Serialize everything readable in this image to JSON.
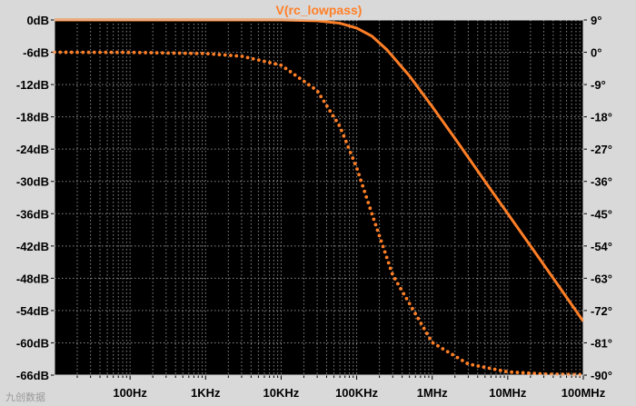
{
  "watermark": "九创数据",
  "chart_data": {
    "type": "line",
    "title": "V(rc_lowpass)",
    "xlabel": "",
    "ylabel": "",
    "x_scale": "log",
    "xlim": [
      10,
      100000000
    ],
    "ylim_left": [
      -66,
      0
    ],
    "ylim_right": [
      -90,
      9
    ],
    "x_ticks": [
      {
        "value": 100,
        "label": "100Hz"
      },
      {
        "value": 1000,
        "label": "1KHz"
      },
      {
        "value": 10000,
        "label": "10KHz"
      },
      {
        "value": 100000,
        "label": "100KHz"
      },
      {
        "value": 1000000,
        "label": "1MHz"
      },
      {
        "value": 10000000,
        "label": "10MHz"
      },
      {
        "value": 100000000,
        "label": "100MHz"
      }
    ],
    "y_left_ticks": [
      {
        "value": 0,
        "label": "0dB"
      },
      {
        "value": -6,
        "label": "-6dB"
      },
      {
        "value": -12,
        "label": "-12dB"
      },
      {
        "value": -18,
        "label": "-18dB"
      },
      {
        "value": -24,
        "label": "-24dB"
      },
      {
        "value": -30,
        "label": "-30dB"
      },
      {
        "value": -36,
        "label": "-36dB"
      },
      {
        "value": -42,
        "label": "-42dB"
      },
      {
        "value": -48,
        "label": "-48dB"
      },
      {
        "value": -54,
        "label": "-54dB"
      },
      {
        "value": -60,
        "label": "-60dB"
      },
      {
        "value": -66,
        "label": "-66dB"
      }
    ],
    "y_right_ticks": [
      {
        "value": 9,
        "label": "9°"
      },
      {
        "value": 0,
        "label": "0°"
      },
      {
        "value": -9,
        "label": "-9°"
      },
      {
        "value": -18,
        "label": "-18°"
      },
      {
        "value": -27,
        "label": "-27°"
      },
      {
        "value": -36,
        "label": "-36°"
      },
      {
        "value": -45,
        "label": "-45°"
      },
      {
        "value": -54,
        "label": "-54°"
      },
      {
        "value": -63,
        "label": "-63°"
      },
      {
        "value": -72,
        "label": "-72°"
      },
      {
        "value": -81,
        "label": "-81°"
      },
      {
        "value": -90,
        "label": "-90°"
      }
    ],
    "grid": true,
    "colors": {
      "background": "#000000",
      "trace": "#ff7f27",
      "frame": "#d9d9d9",
      "grid": "#8a8a8a"
    },
    "series": [
      {
        "kind": "magnitude_dB",
        "axis": "left",
        "style": "solid",
        "corner_hz": 159000,
        "x": [
          10,
          100,
          1000,
          10000,
          30000,
          60000,
          100000,
          159000,
          250000,
          500000,
          1000000,
          2000000,
          5000000,
          10000000,
          30000000,
          100000000
        ],
        "y": [
          0,
          0,
          0,
          0,
          -0.15,
          -0.6,
          -1.5,
          -3.0,
          -5.5,
          -10.4,
          -16.1,
          -22.0,
          -30.0,
          -36.0,
          -45.5,
          -56.0
        ]
      },
      {
        "kind": "phase_deg",
        "axis": "right",
        "style": "dotted",
        "corner_hz": 159000,
        "x": [
          10,
          100,
          1000,
          3000,
          10000,
          30000,
          60000,
          100000,
          159000,
          300000,
          1000000,
          3000000,
          10000000,
          30000000,
          100000000
        ],
        "y": [
          0,
          -0.04,
          -0.36,
          -1.1,
          -3.6,
          -10.7,
          -20.7,
          -32.2,
          -45,
          -62.1,
          -80.9,
          -86.9,
          -89.1,
          -89.7,
          -89.9
        ]
      }
    ]
  }
}
